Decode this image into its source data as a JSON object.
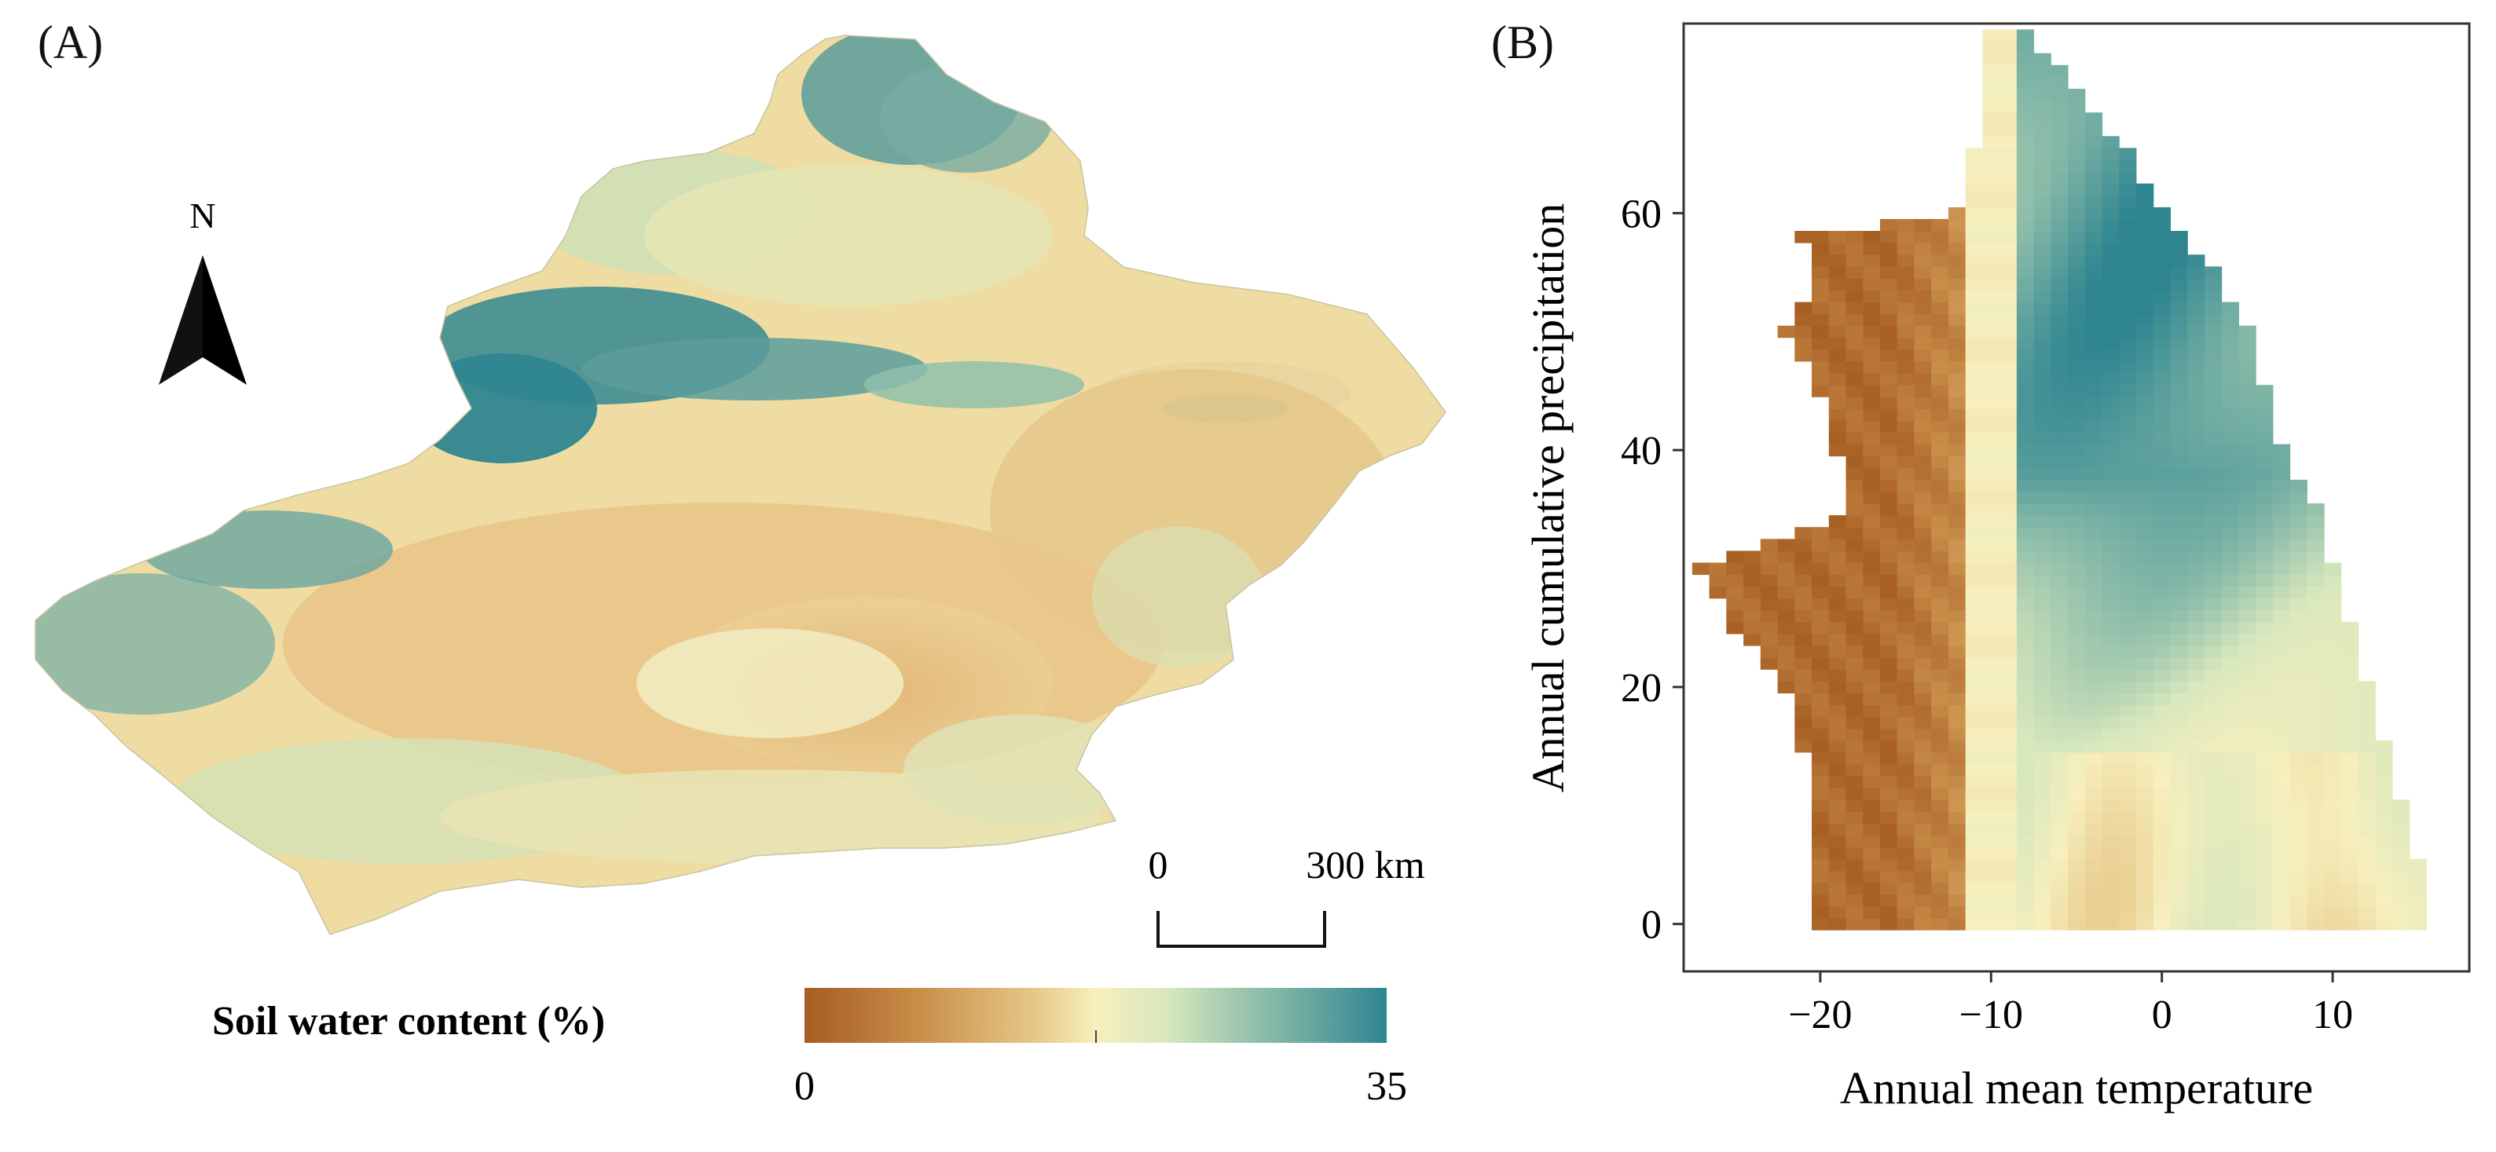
{
  "panels": {
    "a_label": "(A)",
    "b_label": "(B)"
  },
  "map": {
    "north_label": "N",
    "scale_bar": {
      "start": "0",
      "end": "300 km"
    },
    "legend": {
      "title": "Soil water content (%)",
      "min": "0",
      "max": "35",
      "colors": [
        "#a65c22",
        "#c98f4a",
        "#e7c98a",
        "#f7efbd",
        "#d8e8bd",
        "#86b9a8",
        "#2e8590"
      ]
    }
  },
  "chart_data": {
    "type": "heatmap",
    "title": "",
    "xlabel": "Annual mean temperature",
    "ylabel": "Annual cumulative precipitation",
    "xlim": [
      -28,
      18
    ],
    "ylim": [
      -4,
      76
    ],
    "x_ticks": [
      -20,
      -10,
      0,
      10
    ],
    "x_tick_labels": [
      "−20",
      "−10",
      "0",
      "10"
    ],
    "y_ticks": [
      0,
      20,
      40,
      60
    ],
    "y_tick_labels": [
      "0",
      "20",
      "40",
      "60"
    ],
    "grid": false,
    "color_scale": {
      "variable": "Soil water content (%)",
      "min": 0,
      "max": 35
    },
    "cell_size": {
      "temperature": 1,
      "precipitation": 1
    },
    "precipitation_rows": [
      {
        "precipitation": 75,
        "temp_range": [
          -10,
          -8
        ]
      },
      {
        "precipitation": 72,
        "temp_range": [
          -10,
          -6
        ]
      },
      {
        "precipitation": 70,
        "temp_range": [
          -10,
          -5
        ]
      },
      {
        "precipitation": 65,
        "temp_range": [
          -11,
          -2
        ]
      },
      {
        "precipitation": 60,
        "temp_range": [
          -12,
          0
        ]
      },
      {
        "precipitation": 58,
        "temp_range": [
          -21,
          1
        ]
      },
      {
        "precipitation": 55,
        "temp_range": [
          -20,
          3
        ]
      },
      {
        "precipitation": 50,
        "temp_range": [
          -22,
          5
        ]
      },
      {
        "precipitation": 45,
        "temp_range": [
          -20,
          6
        ]
      },
      {
        "precipitation": 40,
        "temp_range": [
          -19,
          7
        ]
      },
      {
        "precipitation": 35,
        "temp_range": [
          -18,
          9
        ]
      },
      {
        "precipitation": 30,
        "temp_range": [
          -27,
          10
        ]
      },
      {
        "precipitation": 25,
        "temp_range": [
          -25,
          11
        ]
      },
      {
        "precipitation": 20,
        "temp_range": [
          -22,
          12
        ]
      },
      {
        "precipitation": 15,
        "temp_range": [
          -21,
          13
        ]
      },
      {
        "precipitation": 10,
        "temp_range": [
          -20,
          14
        ]
      },
      {
        "precipitation": 5,
        "temp_range": [
          -20,
          15
        ]
      },
      {
        "precipitation": 0,
        "temp_range": [
          -20,
          15
        ]
      }
    ],
    "zones": [
      {
        "temp_range": [
          -27,
          -11
        ],
        "soil_water_content": "low (about 0–10%)",
        "color": "#a65c22"
      },
      {
        "temp_range": [
          -11,
          -8
        ],
        "soil_water_content": "intermediate (about 15–20%)",
        "color": "#f7efbd"
      },
      {
        "temp_range": [
          -8,
          10
        ],
        "precip_range": [
          15,
          75
        ],
        "soil_water_content": "high (about 25–35%)",
        "color": "#2e8590"
      },
      {
        "temp_range": [
          0,
          15
        ],
        "precip_range": [
          0,
          15
        ],
        "soil_water_content": "intermediate (about 15–20%)",
        "color": "#f2eebd"
      }
    ]
  }
}
